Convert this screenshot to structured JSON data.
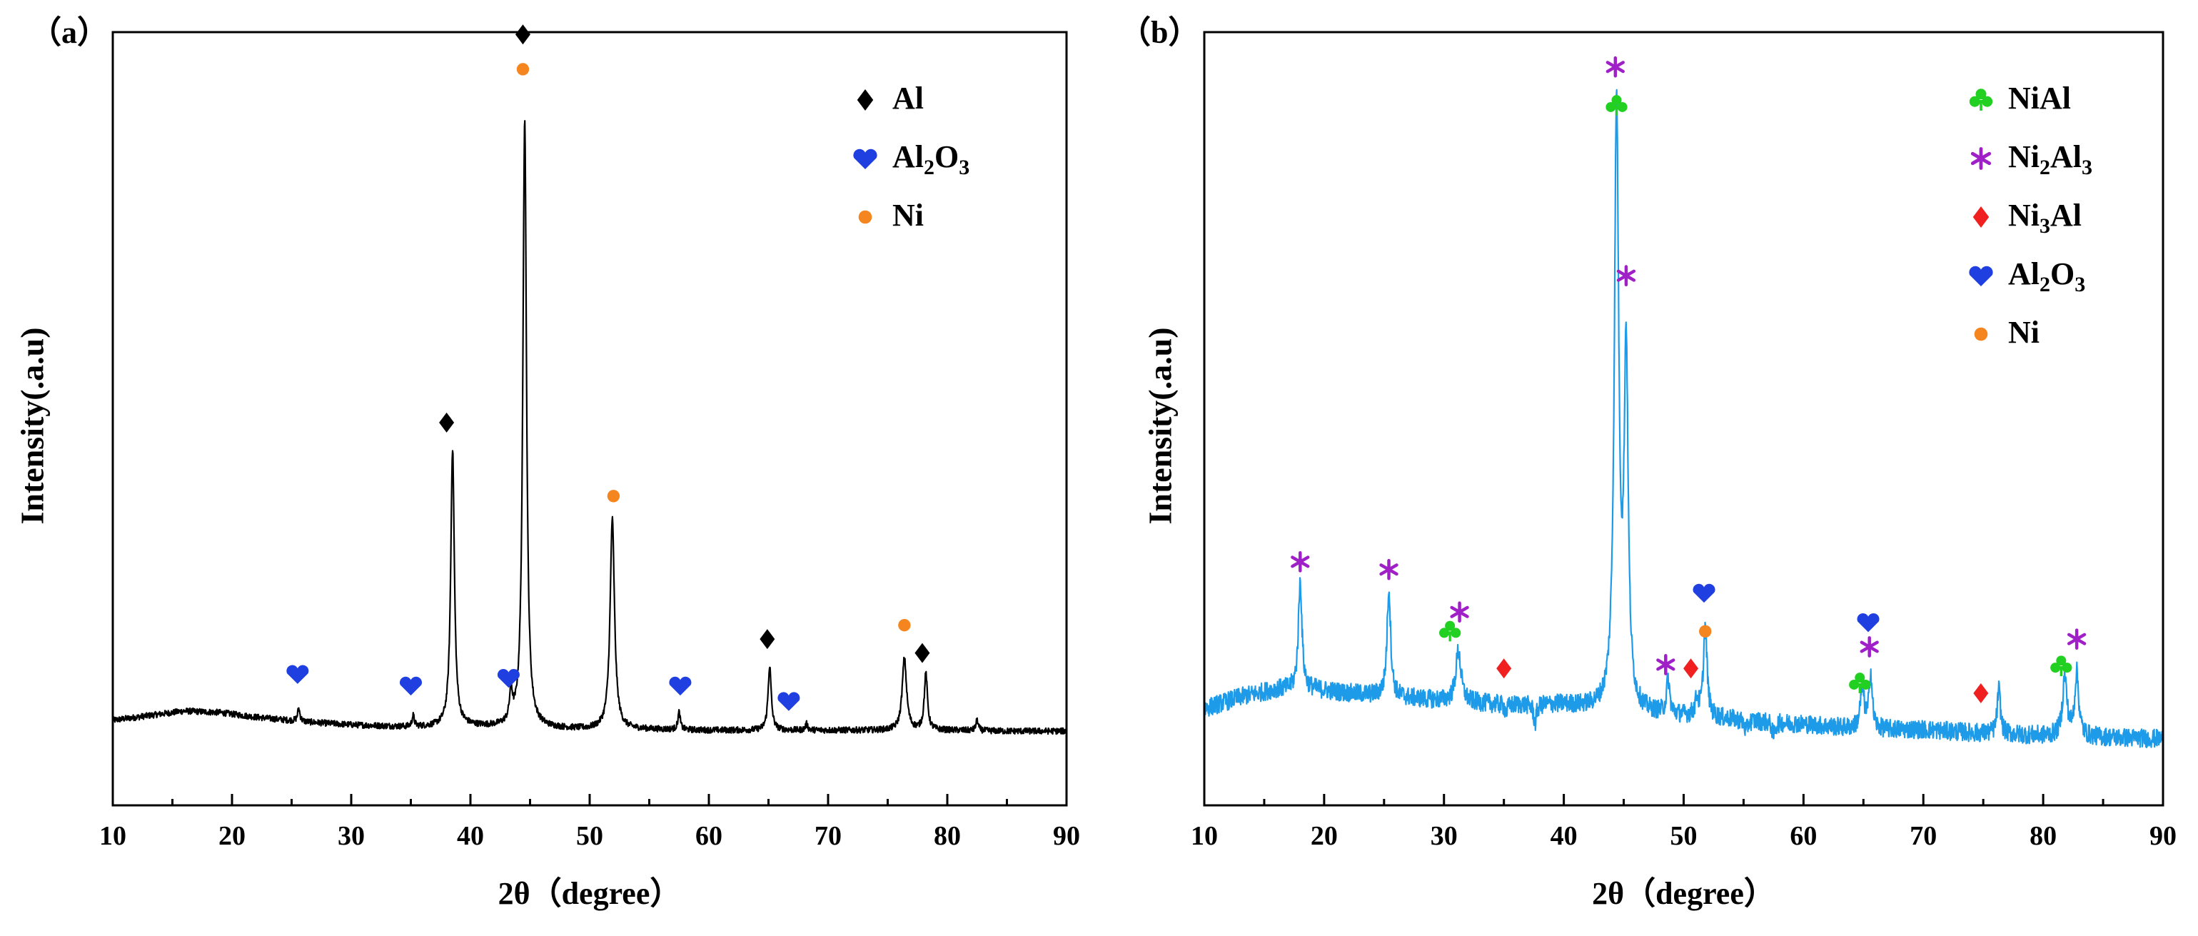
{
  "chart_data": [
    {
      "type": "line",
      "panel_label": "（a）",
      "title": "",
      "xlabel": "2θ（degree）",
      "ylabel": "Intensity(.a.u)",
      "xlim": [
        10,
        90
      ],
      "ylim": [
        0,
        1
      ],
      "x_ticks": [
        "10",
        "20",
        "30",
        "40",
        "50",
        "60",
        "70",
        "80",
        "90"
      ],
      "line_color": "#000000",
      "grid": false,
      "legend_position": "top-right",
      "baseline": [
        [
          10,
          0.11
        ],
        [
          13,
          0.116
        ],
        [
          16,
          0.122
        ],
        [
          19,
          0.12
        ],
        [
          22,
          0.114
        ],
        [
          26,
          0.108
        ],
        [
          30,
          0.104
        ],
        [
          35,
          0.101
        ],
        [
          40,
          0.102
        ],
        [
          45,
          0.1
        ],
        [
          50,
          0.098
        ],
        [
          55,
          0.098
        ],
        [
          60,
          0.097
        ],
        [
          65,
          0.097
        ],
        [
          70,
          0.097
        ],
        [
          75,
          0.097
        ],
        [
          80,
          0.097
        ],
        [
          85,
          0.096
        ],
        [
          90,
          0.096
        ]
      ],
      "peaks": [
        {
          "x": 25.6,
          "y": 0.125,
          "w": 0.12
        },
        {
          "x": 35.2,
          "y": 0.115,
          "w": 0.12
        },
        {
          "x": 38.5,
          "y": 0.46,
          "w": 0.18
        },
        {
          "x": 43.4,
          "y": 0.14,
          "w": 0.14
        },
        {
          "x": 44.55,
          "y": 0.89,
          "w": 0.18
        },
        {
          "x": 51.9,
          "y": 0.37,
          "w": 0.22
        },
        {
          "x": 57.5,
          "y": 0.12,
          "w": 0.12
        },
        {
          "x": 65.1,
          "y": 0.18,
          "w": 0.16
        },
        {
          "x": 68.2,
          "y": 0.105,
          "w": 0.12
        },
        {
          "x": 76.4,
          "y": 0.19,
          "w": 0.22
        },
        {
          "x": 78.2,
          "y": 0.17,
          "w": 0.16
        },
        {
          "x": 82.5,
          "y": 0.11,
          "w": 0.12
        }
      ],
      "noise": 0.004,
      "markers": [
        {
          "phase": "Al",
          "x": 38.0,
          "y": 0.495
        },
        {
          "phase": "Al",
          "x": 44.4,
          "y": 0.997
        },
        {
          "phase": "Al",
          "x": 64.9,
          "y": 0.215
        },
        {
          "phase": "Al",
          "x": 77.9,
          "y": 0.197
        },
        {
          "phase": "Al2O3",
          "x": 25.5,
          "y": 0.17
        },
        {
          "phase": "Al2O3",
          "x": 35.0,
          "y": 0.155
        },
        {
          "phase": "Al2O3",
          "x": 43.2,
          "y": 0.165
        },
        {
          "phase": "Al2O3",
          "x": 57.6,
          "y": 0.155
        },
        {
          "phase": "Al2O3",
          "x": 66.7,
          "y": 0.135
        },
        {
          "phase": "Ni",
          "x": 44.4,
          "y": 0.952
        },
        {
          "phase": "Ni",
          "x": 52.0,
          "y": 0.4
        },
        {
          "phase": "Ni",
          "x": 76.4,
          "y": 0.233
        }
      ],
      "legend": [
        {
          "phase": "Al",
          "label_main": "Al",
          "sub1": "",
          "after1": "",
          "sub2": ""
        },
        {
          "phase": "Al2O3",
          "label_main": "Al",
          "sub1": "2",
          "after1": "O",
          "sub2": "3"
        },
        {
          "phase": "Ni",
          "label_main": "Ni",
          "sub1": "",
          "after1": "",
          "sub2": ""
        }
      ]
    },
    {
      "type": "line",
      "panel_label": "（b）",
      "title": "",
      "xlabel": "2θ（degree）",
      "ylabel": "Intensity(.a.u)",
      "xlim": [
        10,
        90
      ],
      "ylim": [
        0,
        1
      ],
      "x_ticks": [
        "10",
        "20",
        "30",
        "40",
        "50",
        "60",
        "70",
        "80",
        "90"
      ],
      "line_color": "#1e9be8",
      "grid": false,
      "legend_position": "top-right",
      "baseline": [
        [
          10,
          0.125
        ],
        [
          13,
          0.14
        ],
        [
          16,
          0.15
        ],
        [
          19,
          0.15
        ],
        [
          22,
          0.145
        ],
        [
          26,
          0.14
        ],
        [
          30,
          0.135
        ],
        [
          35,
          0.13
        ],
        [
          40,
          0.13
        ],
        [
          45,
          0.12
        ],
        [
          50,
          0.115
        ],
        [
          55,
          0.11
        ],
        [
          60,
          0.105
        ],
        [
          65,
          0.098
        ],
        [
          70,
          0.098
        ],
        [
          75,
          0.093
        ],
        [
          80,
          0.09
        ],
        [
          85,
          0.088
        ],
        [
          90,
          0.086
        ]
      ],
      "peaks": [
        {
          "x": 18.0,
          "y": 0.29,
          "w": 0.18
        },
        {
          "x": 25.4,
          "y": 0.28,
          "w": 0.18
        },
        {
          "x": 31.2,
          "y": 0.2,
          "w": 0.26
        },
        {
          "x": 35.2,
          "y": 0.12,
          "w": 0.14
        },
        {
          "x": 37.6,
          "y": 0.105,
          "w": 0.14
        },
        {
          "x": 44.4,
          "y": 0.895,
          "w": 0.22
        },
        {
          "x": 45.2,
          "y": 0.57,
          "w": 0.2
        },
        {
          "x": 48.7,
          "y": 0.16,
          "w": 0.16
        },
        {
          "x": 51.1,
          "y": 0.135,
          "w": 0.16
        },
        {
          "x": 51.8,
          "y": 0.23,
          "w": 0.18
        },
        {
          "x": 55.2,
          "y": 0.095,
          "w": 0.14
        },
        {
          "x": 57.5,
          "y": 0.09,
          "w": 0.14
        },
        {
          "x": 64.9,
          "y": 0.15,
          "w": 0.2
        },
        {
          "x": 65.6,
          "y": 0.17,
          "w": 0.16
        },
        {
          "x": 76.3,
          "y": 0.15,
          "w": 0.16
        },
        {
          "x": 81.8,
          "y": 0.165,
          "w": 0.22
        },
        {
          "x": 82.8,
          "y": 0.17,
          "w": 0.2
        }
      ],
      "noise": 0.012,
      "markers": [
        {
          "phase": "NiAl",
          "x": 44.4,
          "y": 0.905
        },
        {
          "phase": "NiAl",
          "x": 30.5,
          "y": 0.225
        },
        {
          "phase": "NiAl",
          "x": 64.7,
          "y": 0.158
        },
        {
          "phase": "NiAl",
          "x": 81.5,
          "y": 0.18
        },
        {
          "phase": "Ni2Al3",
          "x": 44.3,
          "y": 0.955
        },
        {
          "phase": "Ni2Al3",
          "x": 45.2,
          "y": 0.685
        },
        {
          "phase": "Ni2Al3",
          "x": 18.0,
          "y": 0.315
        },
        {
          "phase": "Ni2Al3",
          "x": 25.4,
          "y": 0.305
        },
        {
          "phase": "Ni2Al3",
          "x": 31.3,
          "y": 0.25
        },
        {
          "phase": "Ni2Al3",
          "x": 48.5,
          "y": 0.182
        },
        {
          "phase": "Ni2Al3",
          "x": 65.5,
          "y": 0.205
        },
        {
          "phase": "Ni2Al3",
          "x": 82.8,
          "y": 0.215
        },
        {
          "phase": "Ni3Al",
          "x": 35.0,
          "y": 0.177
        },
        {
          "phase": "Ni3Al",
          "x": 50.6,
          "y": 0.177
        },
        {
          "phase": "Ni3Al",
          "x": 74.8,
          "y": 0.145
        },
        {
          "phase": "Al2O3",
          "x": 51.7,
          "y": 0.275
        },
        {
          "phase": "Al2O3",
          "x": 65.4,
          "y": 0.237
        },
        {
          "phase": "Ni",
          "x": 51.8,
          "y": 0.225
        }
      ],
      "legend": [
        {
          "phase": "NiAl",
          "label_main": "NiAl",
          "sub1": "",
          "after1": "",
          "sub2": ""
        },
        {
          "phase": "Ni2Al3",
          "label_main": "Ni",
          "sub1": "2",
          "after1": "Al",
          "sub2": "3"
        },
        {
          "phase": "Ni3Al",
          "label_main": "Ni",
          "sub1": "3",
          "after1": "Al",
          "sub2": ""
        },
        {
          "phase": "Al2O3",
          "label_main": "Al",
          "sub1": "2",
          "after1": "O",
          "sub2": "3"
        },
        {
          "phase": "Ni",
          "label_main": "Ni",
          "sub1": "",
          "after1": "",
          "sub2": ""
        }
      ]
    }
  ],
  "phase_styles": {
    "Al": {
      "symbol": "diamond",
      "color": "#000000"
    },
    "Al2O3": {
      "symbol": "heart",
      "color": "#1f3fe0"
    },
    "Ni": {
      "symbol": "circle",
      "color": "#f5851f"
    },
    "NiAl": {
      "symbol": "club",
      "color": "#22d022"
    },
    "Ni2Al3": {
      "symbol": "star",
      "color": "#a020c8"
    },
    "Ni3Al": {
      "symbol": "diamond",
      "color": "#f02020"
    }
  }
}
